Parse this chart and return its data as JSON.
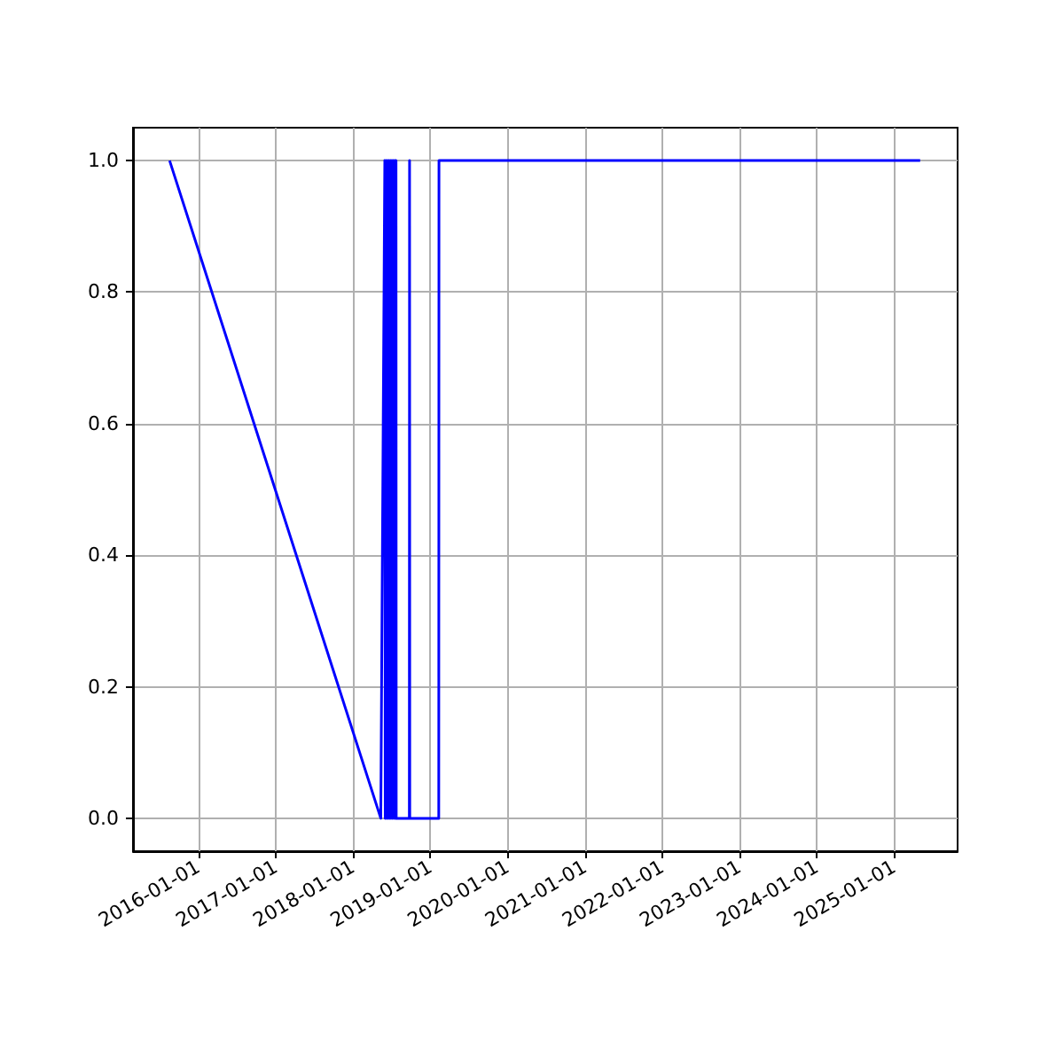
{
  "chart_data": {
    "type": "line",
    "color": "#0000ff",
    "marker": "none",
    "line_style": "solid",
    "grid": true,
    "x": [
      "2015-08-18",
      "2018-05-12",
      "2018-05-31",
      "2018-06-02",
      "2018-06-06",
      "2018-06-08",
      "2018-06-13",
      "2018-06-15",
      "2018-06-20",
      "2018-06-22",
      "2018-06-27",
      "2018-06-29",
      "2018-07-04",
      "2018-07-06",
      "2018-07-11",
      "2018-07-13",
      "2018-07-18",
      "2018-07-20",
      "2018-07-23",
      "2018-07-24",
      "2018-09-24",
      "2018-09-25",
      "2018-09-26",
      "2019-02-10",
      "2019-02-11",
      "2025-05-04"
    ],
    "values": [
      1,
      0,
      1,
      0,
      1,
      0,
      1,
      0,
      1,
      0,
      1,
      0,
      1,
      0,
      1,
      0,
      1,
      0,
      1,
      0,
      0,
      1,
      0,
      0,
      1,
      1
    ],
    "xlim": [
      "2015-02-26",
      "2025-10-28"
    ],
    "ylim": [
      -0.05,
      1.05
    ],
    "xticks": [
      "2016-01-01",
      "2017-01-01",
      "2018-01-01",
      "2019-01-01",
      "2020-01-01",
      "2021-01-01",
      "2022-01-01",
      "2023-01-01",
      "2024-01-01",
      "2025-01-01"
    ],
    "yticks": [
      {
        "value": 0,
        "label": "0.0"
      },
      {
        "value": 0.2,
        "label": "0.2"
      },
      {
        "value": 0.4,
        "label": "0.4"
      },
      {
        "value": 0.6,
        "label": "0.6"
      },
      {
        "value": 0.8,
        "label": "0.8"
      },
      {
        "value": 1,
        "label": "1.0"
      }
    ]
  }
}
